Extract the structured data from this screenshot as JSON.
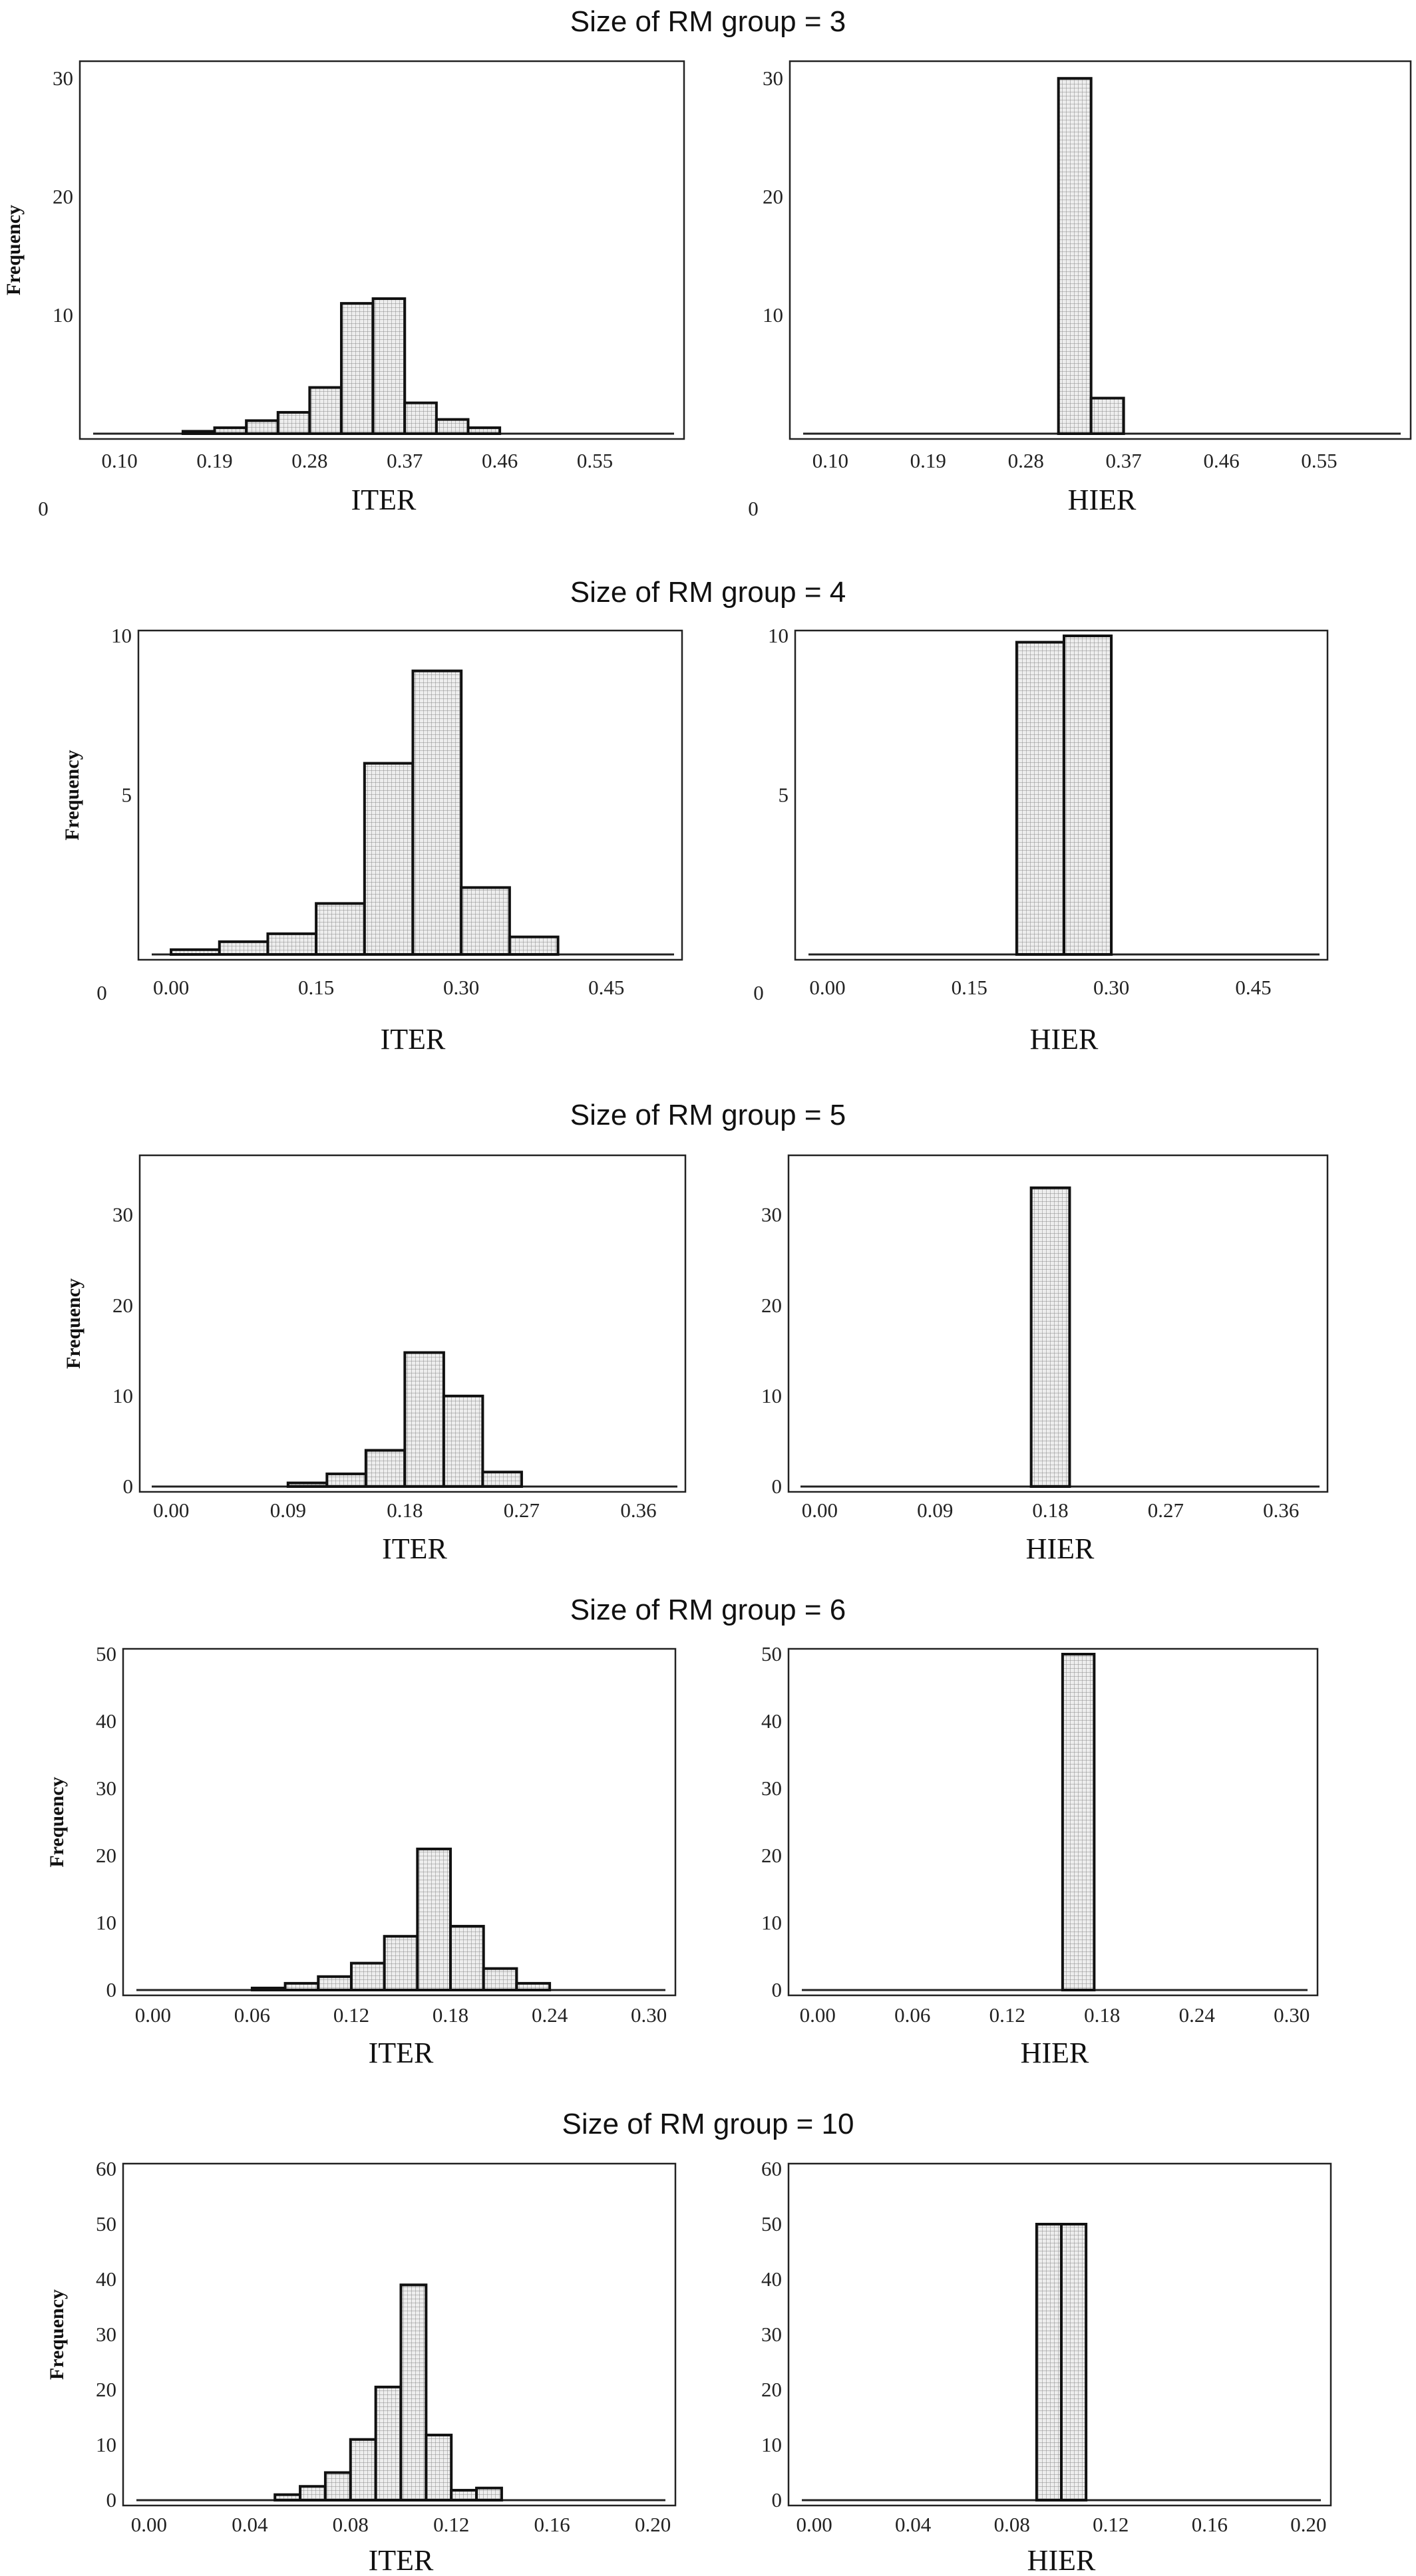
{
  "chart_data": [
    {
      "type": "bar",
      "title": "Size of RM group = 3",
      "panels": [
        {
          "name": "iter-3",
          "xlabel": "ITER",
          "ylabel": "Frequency",
          "origin_label": "0",
          "xlim": [
            0.075,
            0.625
          ],
          "ylim": [
            0,
            31
          ],
          "xticks": [
            0.1,
            0.19,
            0.28,
            0.37,
            0.46,
            0.55
          ],
          "xticklabels": [
            "0.10",
            "0.19",
            "0.28",
            "0.37",
            "0.46",
            "0.55"
          ],
          "yticks": [
            10,
            20,
            30
          ],
          "yticklabels": [
            "10",
            "20",
            "30"
          ],
          "bin_width": 0.03,
          "bin_starts": [
            0.16,
            0.19,
            0.22,
            0.25,
            0.28,
            0.31,
            0.34,
            0.37,
            0.4,
            0.43
          ],
          "values": [
            0.2,
            0.5,
            1.1,
            1.8,
            3.9,
            11,
            11.4,
            2.6,
            1.2,
            0.5
          ]
        },
        {
          "name": "hier-3",
          "xlabel": "HIER",
          "ylabel": "",
          "origin_label": "0",
          "xlim": [
            0.075,
            0.625
          ],
          "ylim": [
            0,
            31
          ],
          "xticks": [
            0.1,
            0.19,
            0.28,
            0.37,
            0.46,
            0.55
          ],
          "xticklabels": [
            "0.10",
            "0.19",
            "0.28",
            "0.37",
            "0.46",
            "0.55"
          ],
          "yticks": [
            10,
            20,
            30
          ],
          "yticklabels": [
            "10",
            "20",
            "30"
          ],
          "bin_width": 0.03,
          "bin_starts": [
            0.31,
            0.34
          ],
          "values": [
            30,
            3
          ]
        }
      ]
    },
    {
      "type": "bar",
      "title": "Size of RM group = 4",
      "panels": [
        {
          "name": "iter-4",
          "xlabel": "ITER",
          "ylabel": "Frequency",
          "origin_label": "0",
          "xlim": [
            -0.02,
            0.52
          ],
          "ylim": [
            0,
            10
          ],
          "xticks": [
            0.0,
            0.15,
            0.3,
            0.45
          ],
          "xticklabels": [
            "0.00",
            "0.15",
            "0.30",
            "0.45"
          ],
          "yticks": [
            5,
            10
          ],
          "yticklabels": [
            "5",
            "10"
          ],
          "bin_width": 0.05,
          "bin_starts": [
            0.0,
            0.05,
            0.1,
            0.15,
            0.2,
            0.25,
            0.3,
            0.35
          ],
          "values": [
            0.15,
            0.4,
            0.65,
            1.6,
            6.0,
            8.9,
            2.1,
            0.55
          ]
        },
        {
          "name": "hier-4",
          "xlabel": "HIER",
          "ylabel": "",
          "origin_label": "0",
          "xlim": [
            -0.02,
            0.52
          ],
          "ylim": [
            0,
            10
          ],
          "xticks": [
            0.0,
            0.15,
            0.3,
            0.45
          ],
          "xticklabels": [
            "0.00",
            "0.15",
            "0.30",
            "0.45"
          ],
          "yticks": [
            5,
            10
          ],
          "yticklabels": [
            "5",
            "10"
          ],
          "bin_width": 0.05,
          "bin_starts": [
            0.2,
            0.25
          ],
          "values": [
            9.8,
            10
          ]
        }
      ]
    },
    {
      "type": "bar",
      "title": "Size of RM group = 5",
      "panels": [
        {
          "name": "iter-5",
          "xlabel": "ITER",
          "ylabel": "Frequency",
          "origin_label": "",
          "xlim": [
            -0.015,
            0.39
          ],
          "ylim": [
            0,
            36
          ],
          "xticks": [
            0.0,
            0.09,
            0.18,
            0.27,
            0.36
          ],
          "xticklabels": [
            "0.00",
            "0.09",
            "0.18",
            "0.27",
            "0.36"
          ],
          "yticks": [
            0,
            10,
            20,
            30
          ],
          "yticklabels": [
            "0",
            "10",
            "20",
            "30"
          ],
          "bin_width": 0.03,
          "bin_starts": [
            0.09,
            0.12,
            0.15,
            0.18,
            0.21,
            0.24
          ],
          "values": [
            0.4,
            1.4,
            4.0,
            14.8,
            10.0,
            1.6
          ]
        },
        {
          "name": "hier-5",
          "xlabel": "HIER",
          "ylabel": "",
          "origin_label": "",
          "xlim": [
            -0.015,
            0.39
          ],
          "ylim": [
            0,
            36
          ],
          "xticks": [
            0.0,
            0.09,
            0.18,
            0.27,
            0.36
          ],
          "xticklabels": [
            "0.00",
            "0.09",
            "0.18",
            "0.27",
            "0.36"
          ],
          "yticks": [
            0,
            10,
            20,
            30
          ],
          "yticklabels": [
            "0",
            "10",
            "20",
            "30"
          ],
          "bin_width": 0.03,
          "bin_starts": [
            0.165
          ],
          "values": [
            33
          ]
        }
      ]
    },
    {
      "type": "bar",
      "title": "Size of RM group = 6",
      "panels": [
        {
          "name": "iter-6",
          "xlabel": "ITER",
          "ylabel": "Frequency",
          "origin_label": "",
          "xlim": [
            -0.01,
            0.31
          ],
          "ylim": [
            0,
            50
          ],
          "xticks": [
            0.0,
            0.06,
            0.12,
            0.18,
            0.24,
            0.3
          ],
          "xticklabels": [
            "0.00",
            "0.06",
            "0.12",
            "0.18",
            "0.24",
            "0.30"
          ],
          "yticks": [
            0,
            10,
            20,
            30,
            40,
            50
          ],
          "yticklabels": [
            "0",
            "10",
            "20",
            "30",
            "40",
            "50"
          ],
          "bin_width": 0.02,
          "bin_starts": [
            0.06,
            0.08,
            0.1,
            0.12,
            0.14,
            0.16,
            0.18,
            0.2,
            0.22
          ],
          "values": [
            0.3,
            1.0,
            2.0,
            4.0,
            8.0,
            21.0,
            9.5,
            3.2,
            1.0
          ]
        },
        {
          "name": "hier-6",
          "xlabel": "HIER",
          "ylabel": "",
          "origin_label": "",
          "xlim": [
            -0.01,
            0.31
          ],
          "ylim": [
            0,
            50
          ],
          "xticks": [
            0.0,
            0.06,
            0.12,
            0.18,
            0.24,
            0.3
          ],
          "xticklabels": [
            "0.00",
            "0.06",
            "0.12",
            "0.18",
            "0.24",
            "0.30"
          ],
          "yticks": [
            0,
            10,
            20,
            30,
            40,
            50
          ],
          "yticklabels": [
            "0",
            "10",
            "20",
            "30",
            "40",
            "50"
          ],
          "bin_width": 0.02,
          "bin_starts": [
            0.155
          ],
          "values": [
            50
          ]
        }
      ]
    },
    {
      "type": "bar",
      "title": "Size of RM group = 10",
      "panels": [
        {
          "name": "iter-10",
          "xlabel": "ITER",
          "ylabel": "Frequency",
          "origin_label": "",
          "xlim": [
            -0.005,
            0.205
          ],
          "ylim": [
            0,
            60
          ],
          "xticks": [
            0.0,
            0.04,
            0.08,
            0.12,
            0.16,
            0.2
          ],
          "xticklabels": [
            "0.00",
            "0.04",
            "0.08",
            "0.12",
            "0.16",
            "0.20"
          ],
          "yticks": [
            0,
            10,
            20,
            30,
            40,
            50,
            60
          ],
          "yticklabels": [
            "0",
            "10",
            "20",
            "30",
            "40",
            "50",
            "60"
          ],
          "bin_width": 0.01,
          "bin_starts": [
            0.05,
            0.06,
            0.07,
            0.08,
            0.09,
            0.1,
            0.11,
            0.12,
            0.13
          ],
          "values": [
            1.0,
            2.5,
            5.0,
            11.0,
            20.5,
            39.0,
            11.8,
            1.8,
            2.2
          ]
        },
        {
          "name": "hier-10",
          "xlabel": "HIER",
          "ylabel": "",
          "origin_label": "",
          "xlim": [
            -0.005,
            0.205
          ],
          "ylim": [
            0,
            60
          ],
          "xticks": [
            0.0,
            0.04,
            0.08,
            0.12,
            0.16,
            0.2
          ],
          "xticklabels": [
            "0.00",
            "0.04",
            "0.08",
            "0.12",
            "0.16",
            "0.20"
          ],
          "yticks": [
            0,
            10,
            20,
            30,
            40,
            50,
            60
          ],
          "yticklabels": [
            "0",
            "10",
            "20",
            "30",
            "40",
            "50",
            "60"
          ],
          "bin_width": 0.01,
          "bin_starts": [
            0.09,
            0.1
          ],
          "values": [
            50,
            50
          ]
        }
      ]
    }
  ]
}
